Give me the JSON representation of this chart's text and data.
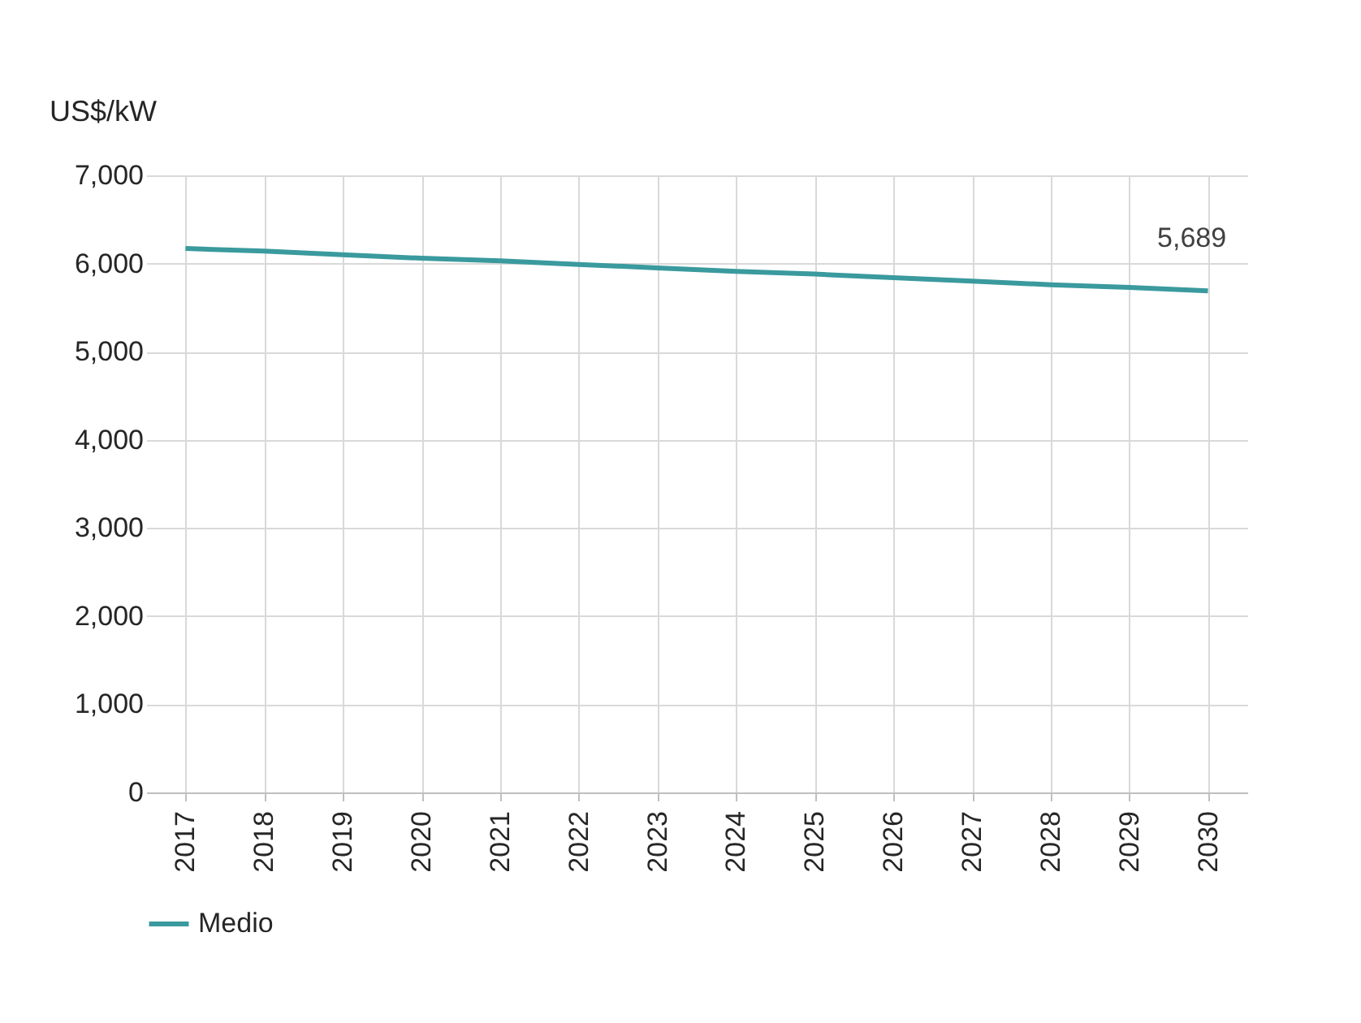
{
  "chart_data": {
    "type": "line",
    "ylabel": "US$/kW",
    "categories": [
      "2017",
      "2018",
      "2019",
      "2020",
      "2021",
      "2022",
      "2023",
      "2024",
      "2025",
      "2026",
      "2027",
      "2028",
      "2029",
      "2030"
    ],
    "series": [
      {
        "name": "Medio",
        "color": "#3a9a9e",
        "values": [
          6170,
          6140,
          6100,
          6060,
          6030,
          5990,
          5950,
          5910,
          5880,
          5840,
          5800,
          5760,
          5730,
          5689
        ],
        "value_labels": [
          null,
          null,
          null,
          null,
          null,
          null,
          null,
          null,
          null,
          null,
          null,
          null,
          null,
          "5,689"
        ]
      }
    ],
    "ylim": [
      0,
      7000
    ],
    "yticks": [
      0,
      {
        "value": 1000,
        "label": "1,000"
      },
      {
        "value": 2000,
        "label": "2,000"
      },
      {
        "value": 3000,
        "label": "3,000"
      },
      {
        "value": 4000,
        "label": "4,000"
      },
      {
        "value": 5000,
        "label": "5,000"
      },
      {
        "value": 6000,
        "label": "6,000"
      },
      {
        "value": 7000,
        "label": "7,000"
      }
    ],
    "grid": true,
    "legend": "bottom",
    "marker": "none",
    "line_style": "solid"
  }
}
